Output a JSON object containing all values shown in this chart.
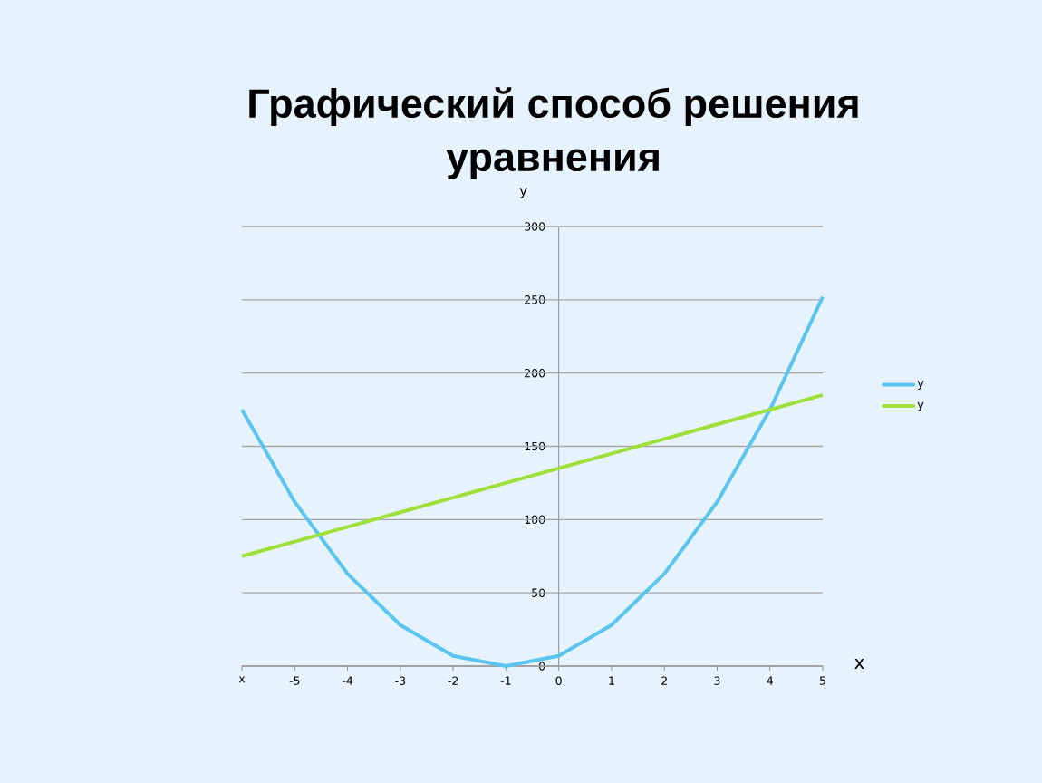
{
  "chart_data": {
    "type": "line",
    "title": "Графический способ решения уравнения",
    "xlabel": "х",
    "ylabel": "у",
    "categories": [
      "x",
      "-5",
      "-4",
      "-3",
      "-2",
      "-1",
      "0",
      "1",
      "2",
      "3",
      "4",
      "5"
    ],
    "series": [
      {
        "name": "y",
        "color": "#5bc5ee",
        "values": [
          175,
          112,
          63,
          28,
          7,
          0,
          7,
          28,
          63,
          112,
          175,
          252
        ]
      },
      {
        "name": "y",
        "color": "#9fe03a",
        "values": [
          75,
          85,
          95,
          105,
          115,
          125,
          135,
          145,
          155,
          165,
          175,
          185
        ]
      }
    ],
    "ylim": [
      0,
      300
    ],
    "yticks": [
      0,
      50,
      100,
      150,
      200,
      250,
      300
    ],
    "grid": "y",
    "legend": "right",
    "marker": "none",
    "line_style": "solid"
  }
}
